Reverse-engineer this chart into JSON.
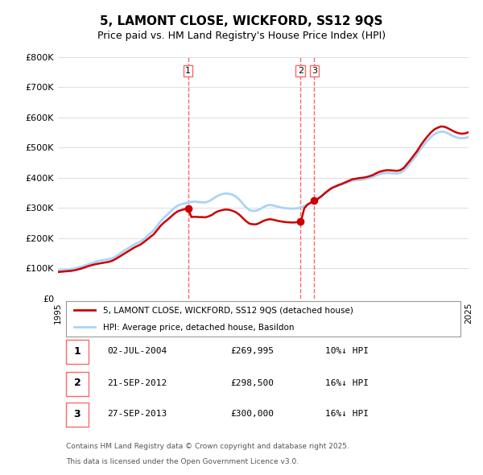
{
  "title": "5, LAMONT CLOSE, WICKFORD, SS12 9QS",
  "subtitle": "Price paid vs. HM Land Registry's House Price Index (HPI)",
  "ylabel": "",
  "xlabel": "",
  "ylim": [
    0,
    800000
  ],
  "yticks": [
    0,
    100000,
    200000,
    300000,
    400000,
    500000,
    600000,
    700000,
    800000
  ],
  "ytick_labels": [
    "£0",
    "£100K",
    "£200K",
    "£300K",
    "£400K",
    "£500K",
    "£600K",
    "£700K",
    "£800K"
  ],
  "hpi_color": "#aad4f5",
  "price_color": "#cc0000",
  "transaction_line_color": "#ff6666",
  "background_color": "#ffffff",
  "grid_color": "#dddddd",
  "transactions": [
    {
      "label": "1",
      "date": "02-JUL-2004",
      "price": 269995,
      "pct": "10%↓ HPI",
      "x_year": 2004.5
    },
    {
      "label": "2",
      "date": "21-SEP-2012",
      "price": 298500,
      "pct": "16%↓ HPI",
      "x_year": 2012.72
    },
    {
      "label": "3",
      "date": "27-SEP-2013",
      "price": 300000,
      "pct": "16%↓ HPI",
      "x_year": 2013.73
    }
  ],
  "legend_line1": "5, LAMONT CLOSE, WICKFORD, SS12 9QS (detached house)",
  "legend_line2": "HPI: Average price, detached house, Basildon",
  "footnote1": "Contains HM Land Registry data © Crown copyright and database right 2025.",
  "footnote2": "This data is licensed under the Open Government Licence v3.0.",
  "hpi_years": [
    1995,
    1995.25,
    1995.5,
    1995.75,
    1996,
    1996.25,
    1996.5,
    1996.75,
    1997,
    1997.25,
    1997.5,
    1997.75,
    1998,
    1998.25,
    1998.5,
    1998.75,
    1999,
    1999.25,
    1999.5,
    1999.75,
    2000,
    2000.25,
    2000.5,
    2000.75,
    2001,
    2001.25,
    2001.5,
    2001.75,
    2002,
    2002.25,
    2002.5,
    2002.75,
    2003,
    2003.25,
    2003.5,
    2003.75,
    2004,
    2004.25,
    2004.5,
    2004.75,
    2005,
    2005.25,
    2005.5,
    2005.75,
    2006,
    2006.25,
    2006.5,
    2006.75,
    2007,
    2007.25,
    2007.5,
    2007.75,
    2008,
    2008.25,
    2008.5,
    2008.75,
    2009,
    2009.25,
    2009.5,
    2009.75,
    2010,
    2010.25,
    2010.5,
    2010.75,
    2011,
    2011.25,
    2011.5,
    2011.75,
    2012,
    2012.25,
    2012.5,
    2012.75,
    2013,
    2013.25,
    2013.5,
    2013.75,
    2014,
    2014.25,
    2014.5,
    2014.75,
    2015,
    2015.25,
    2015.5,
    2015.75,
    2016,
    2016.25,
    2016.5,
    2016.75,
    2017,
    2017.25,
    2017.5,
    2017.75,
    2018,
    2018.25,
    2018.5,
    2018.75,
    2019,
    2019.25,
    2019.5,
    2019.75,
    2020,
    2020.25,
    2020.5,
    2020.75,
    2021,
    2021.25,
    2021.5,
    2021.75,
    2022,
    2022.25,
    2022.5,
    2022.75,
    2023,
    2023.25,
    2023.5,
    2023.75,
    2024,
    2024.25,
    2024.5,
    2024.75,
    2025
  ],
  "hpi_values": [
    93000,
    94000,
    95000,
    96000,
    98000,
    100000,
    103000,
    106000,
    110000,
    114000,
    118000,
    122000,
    125000,
    127000,
    129000,
    131000,
    134000,
    140000,
    148000,
    156000,
    163000,
    170000,
    177000,
    183000,
    188000,
    196000,
    206000,
    216000,
    226000,
    241000,
    256000,
    268000,
    278000,
    289000,
    300000,
    308000,
    312000,
    315000,
    318000,
    320000,
    321000,
    320000,
    319000,
    318000,
    322000,
    328000,
    336000,
    342000,
    346000,
    348000,
    347000,
    344000,
    338000,
    328000,
    315000,
    302000,
    293000,
    290000,
    291000,
    296000,
    303000,
    308000,
    310000,
    308000,
    305000,
    302000,
    300000,
    299000,
    298000,
    298000,
    299000,
    302000,
    306000,
    312000,
    318000,
    324000,
    330000,
    338000,
    348000,
    357000,
    365000,
    370000,
    374000,
    378000,
    382000,
    386000,
    390000,
    392000,
    393000,
    394000,
    396000,
    399000,
    403000,
    408000,
    412000,
    415000,
    416000,
    416000,
    415000,
    414000,
    416000,
    423000,
    435000,
    449000,
    463000,
    478000,
    495000,
    510000,
    523000,
    535000,
    544000,
    550000,
    553000,
    552000,
    547000,
    541000,
    536000,
    532000,
    531000,
    532000,
    535000
  ],
  "price_years": [
    1995,
    1995.25,
    1995.5,
    1995.75,
    1996,
    1996.25,
    1996.5,
    1996.75,
    1997,
    1997.25,
    1997.5,
    1997.75,
    1998,
    1998.25,
    1998.5,
    1998.75,
    1999,
    1999.25,
    1999.5,
    1999.75,
    2000,
    2000.25,
    2000.5,
    2000.75,
    2001,
    2001.25,
    2001.5,
    2001.75,
    2002,
    2002.25,
    2002.5,
    2002.75,
    2003,
    2003.25,
    2003.5,
    2003.75,
    2004,
    2004.25,
    2004.5,
    2004.75,
    2005,
    2005.25,
    2005.5,
    2005.75,
    2006,
    2006.25,
    2006.5,
    2006.75,
    2007,
    2007.25,
    2007.5,
    2007.75,
    2008,
    2008.25,
    2008.5,
    2008.75,
    2009,
    2009.25,
    2009.5,
    2009.75,
    2010,
    2010.25,
    2010.5,
    2010.75,
    2011,
    2011.25,
    2011.5,
    2011.75,
    2012,
    2012.25,
    2012.5,
    2012.75,
    2013,
    2013.25,
    2013.5,
    2013.75,
    2014,
    2014.25,
    2014.5,
    2014.75,
    2015,
    2015.25,
    2015.5,
    2015.75,
    2016,
    2016.25,
    2016.5,
    2016.75,
    2017,
    2017.25,
    2017.5,
    2017.75,
    2018,
    2018.25,
    2018.5,
    2018.75,
    2019,
    2019.25,
    2019.5,
    2019.75,
    2020,
    2020.25,
    2020.5,
    2020.75,
    2021,
    2021.25,
    2021.5,
    2021.75,
    2022,
    2022.25,
    2022.5,
    2022.75,
    2023,
    2023.25,
    2023.5,
    2023.75,
    2024,
    2024.25,
    2024.5,
    2024.75,
    2025
  ],
  "price_values": [
    88000,
    89000,
    90000,
    91000,
    92000,
    94000,
    97000,
    100000,
    104000,
    108000,
    111000,
    114000,
    116000,
    118000,
    120000,
    122000,
    126000,
    132000,
    139000,
    146000,
    153000,
    160000,
    167000,
    173000,
    178000,
    186000,
    195000,
    204000,
    213000,
    227000,
    241000,
    252000,
    261000,
    271000,
    281000,
    289000,
    293000,
    296000,
    299000,
    270000,
    271000,
    270000,
    270000,
    269000,
    272000,
    277000,
    285000,
    290000,
    293000,
    295000,
    294000,
    291000,
    286000,
    278000,
    267000,
    256000,
    248000,
    246000,
    246000,
    251000,
    257000,
    261000,
    263000,
    261000,
    258000,
    256000,
    254000,
    253000,
    252000,
    252000,
    253000,
    255000,
    299000,
    312000,
    318000,
    324000,
    331000,
    339000,
    349000,
    358000,
    366000,
    371000,
    376000,
    380000,
    385000,
    390000,
    395000,
    397000,
    399000,
    400000,
    402000,
    405000,
    409000,
    415000,
    420000,
    423000,
    425000,
    425000,
    424000,
    423000,
    425000,
    432000,
    445000,
    459000,
    474000,
    489000,
    507000,
    523000,
    537000,
    550000,
    560000,
    566000,
    570000,
    569000,
    564000,
    558000,
    552000,
    548000,
    546000,
    547000,
    551000
  ],
  "xlim": [
    1995,
    2025
  ],
  "xtick_years": [
    1995,
    1996,
    1997,
    1998,
    1999,
    2000,
    2001,
    2002,
    2003,
    2004,
    2005,
    2006,
    2007,
    2008,
    2009,
    2010,
    2011,
    2012,
    2013,
    2014,
    2015,
    2016,
    2017,
    2018,
    2019,
    2020,
    2021,
    2022,
    2023,
    2024,
    2025
  ]
}
